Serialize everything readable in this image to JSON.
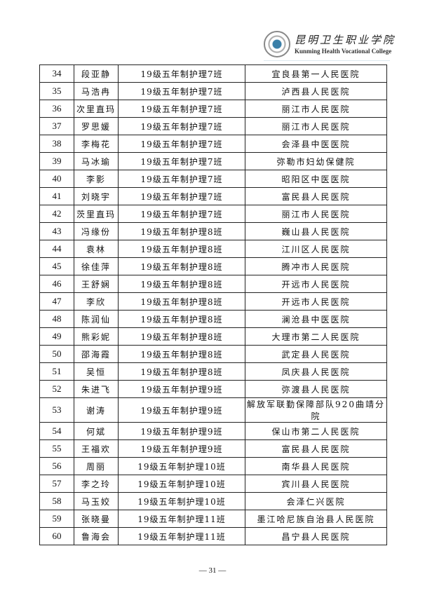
{
  "header": {
    "logo_cn": "昆明卫生职业学院",
    "logo_en": "Kunming Health Vocational College"
  },
  "rows": [
    [
      "34",
      "段亚静",
      "19级五年制护理7班",
      "宜良县第一人民医院"
    ],
    [
      "35",
      "马浩冉",
      "19级五年制护理7班",
      "泸西县人民医院"
    ],
    [
      "36",
      "次里直玛",
      "19级五年制护理7班",
      "丽江市人民医院"
    ],
    [
      "37",
      "罗思媛",
      "19级五年制护理7班",
      "丽江市人民医院"
    ],
    [
      "38",
      "李梅花",
      "19级五年制护理7班",
      "会泽县中医医院"
    ],
    [
      "39",
      "马冰瑜",
      "19级五年制护理7班",
      "弥勒市妇幼保健院"
    ],
    [
      "40",
      "李影",
      "19级五年制护理7班",
      "昭阳区中医医院"
    ],
    [
      "41",
      "刘晓宇",
      "19级五年制护理7班",
      "富民县人民医院"
    ],
    [
      "42",
      "茨里直玛",
      "19级五年制护理7班",
      "丽江市人民医院"
    ],
    [
      "43",
      "冯缘份",
      "19级五年制护理8班",
      "巍山县人民医院"
    ],
    [
      "44",
      "袁林",
      "19级五年制护理8班",
      "江川区人民医院"
    ],
    [
      "45",
      "徐佳萍",
      "19级五年制护理8班",
      "腾冲市人民医院"
    ],
    [
      "46",
      "王舒娴",
      "19级五年制护理8班",
      "开远市人民医院"
    ],
    [
      "47",
      "李欣",
      "19级五年制护理8班",
      "开远市人民医院"
    ],
    [
      "48",
      "陈润仙",
      "19级五年制护理8班",
      "澜沧县中医医院"
    ],
    [
      "49",
      "熊彩妮",
      "19级五年制护理8班",
      "大理市第二人民医院"
    ],
    [
      "50",
      "邵海霞",
      "19级五年制护理8班",
      "武定县人民医院"
    ],
    [
      "51",
      "吴恒",
      "19级五年制护理8班",
      "凤庆县人民医院"
    ],
    [
      "52",
      "朱进飞",
      "19级五年制护理9班",
      "弥渡县人民医院"
    ],
    [
      "53",
      "谢涛",
      "19级五年制护理9班",
      "解放军联勤保障部队920曲靖分院"
    ],
    [
      "54",
      "何斌",
      "19级五年制护理9班",
      "保山市第二人民医院"
    ],
    [
      "55",
      "王福欢",
      "19级五年制护理9班",
      "富民县人民医院"
    ],
    [
      "56",
      "周丽",
      "19级五年制护理10班",
      "南华县人民医院"
    ],
    [
      "57",
      "李之玲",
      "19级五年制护理10班",
      "宾川县人民医院"
    ],
    [
      "58",
      "马玉姣",
      "19级五年制护理10班",
      "会泽仁兴医院"
    ],
    [
      "59",
      "张晓曼",
      "19级五年制护理11班",
      "墨江哈尼族自治县人民医院"
    ],
    [
      "60",
      "鲁海会",
      "19级五年制护理11班",
      "昌宁县人民医院"
    ]
  ],
  "footer": {
    "page": "— 31 —"
  }
}
